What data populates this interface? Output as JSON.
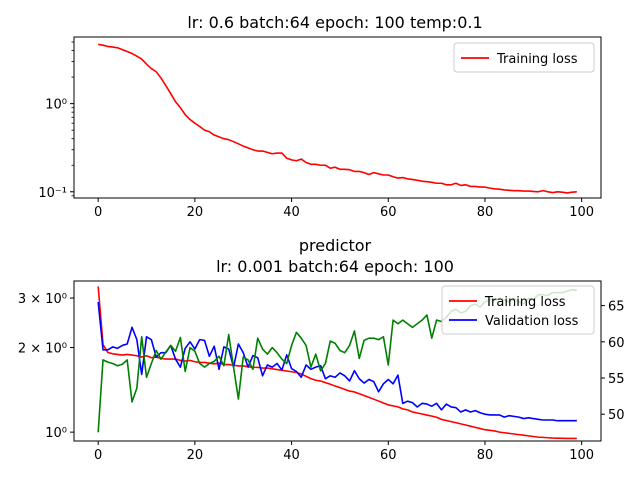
{
  "chart_data": [
    {
      "type": "line",
      "title": "lr: 0.6 batch:64 epoch: 100 temp:0.1",
      "subtitle": "",
      "xlabel": "",
      "ylabel": "",
      "yscale": "log",
      "xlim": [
        -5,
        104
      ],
      "ylim": [
        0.085,
        5.7
      ],
      "x_ticks": [
        0,
        20,
        40,
        60,
        80,
        100
      ],
      "y_ticks": [
        {
          "value": 1.0,
          "label": "10⁰"
        },
        {
          "value": 0.1,
          "label": "10⁻¹"
        }
      ],
      "legend": {
        "placement": "top-right",
        "entries": [
          "Training loss"
        ]
      },
      "grid": false,
      "series": [
        {
          "name": "Training loss",
          "color": "#ff0000",
          "axis": "left",
          "x": [
            0,
            1,
            2,
            3,
            4,
            5,
            6,
            7,
            8,
            9,
            10,
            11,
            12,
            13,
            14,
            15,
            16,
            17,
            18,
            19,
            20,
            21,
            22,
            23,
            24,
            25,
            26,
            27,
            28,
            29,
            30,
            31,
            32,
            33,
            34,
            35,
            36,
            37,
            38,
            39,
            40,
            41,
            42,
            43,
            44,
            45,
            46,
            47,
            48,
            49,
            50,
            51,
            52,
            53,
            54,
            55,
            56,
            57,
            58,
            59,
            60,
            61,
            62,
            63,
            64,
            65,
            66,
            67,
            68,
            69,
            70,
            71,
            72,
            73,
            74,
            75,
            76,
            77,
            78,
            79,
            80,
            81,
            82,
            83,
            84,
            85,
            86,
            87,
            88,
            89,
            90,
            91,
            92,
            93,
            94,
            95,
            96,
            97,
            98,
            99
          ],
          "values": [
            4.7,
            4.6,
            4.45,
            4.38,
            4.3,
            4.1,
            3.9,
            3.7,
            3.45,
            3.2,
            2.8,
            2.5,
            2.3,
            1.95,
            1.6,
            1.3,
            1.05,
            0.9,
            0.75,
            0.66,
            0.6,
            0.55,
            0.5,
            0.48,
            0.44,
            0.42,
            0.4,
            0.39,
            0.37,
            0.35,
            0.33,
            0.315,
            0.3,
            0.29,
            0.29,
            0.28,
            0.27,
            0.275,
            0.275,
            0.24,
            0.23,
            0.225,
            0.235,
            0.215,
            0.205,
            0.205,
            0.2,
            0.2,
            0.185,
            0.19,
            0.18,
            0.18,
            0.178,
            0.17,
            0.17,
            0.165,
            0.157,
            0.165,
            0.16,
            0.155,
            0.155,
            0.148,
            0.143,
            0.145,
            0.14,
            0.138,
            0.135,
            0.132,
            0.13,
            0.128,
            0.125,
            0.125,
            0.12,
            0.12,
            0.125,
            0.118,
            0.12,
            0.115,
            0.115,
            0.113,
            0.113,
            0.11,
            0.108,
            0.107,
            0.105,
            0.104,
            0.103,
            0.103,
            0.102,
            0.102,
            0.101,
            0.1,
            0.103,
            0.1,
            0.098,
            0.1,
            0.099,
            0.097,
            0.099,
            0.1
          ]
        }
      ]
    },
    {
      "type": "line",
      "title": "predictor",
      "subtitle": "lr: 0.001 batch:64 epoch: 100",
      "xlabel": "",
      "ylabel": "",
      "yscale": "log",
      "xlim": [
        -5,
        104
      ],
      "ylim": [
        0.93,
        3.45
      ],
      "y2lim": [
        46.3,
        68.4
      ],
      "x_ticks": [
        0,
        20,
        40,
        60,
        80,
        100
      ],
      "y_ticks": [
        {
          "value": 3.0,
          "label": "3 × 10⁰"
        },
        {
          "value": 2.0,
          "label": "2 × 10⁰"
        },
        {
          "value": 1.0,
          "label": "10⁰"
        }
      ],
      "y2_ticks": [
        50,
        55,
        60,
        65
      ],
      "legend": {
        "placement": "top-right",
        "entries": [
          "Training loss",
          "Validation loss"
        ]
      },
      "grid": false,
      "series": [
        {
          "name": "Training loss",
          "color": "#ff0000",
          "axis": "left",
          "x": [
            0,
            1,
            2,
            3,
            4,
            5,
            6,
            7,
            8,
            9,
            10,
            11,
            12,
            13,
            14,
            15,
            16,
            17,
            18,
            19,
            20,
            21,
            22,
            23,
            24,
            25,
            26,
            27,
            28,
            29,
            30,
            31,
            32,
            33,
            34,
            35,
            36,
            37,
            38,
            39,
            40,
            41,
            42,
            43,
            44,
            45,
            46,
            47,
            48,
            49,
            50,
            51,
            52,
            53,
            54,
            55,
            56,
            57,
            58,
            59,
            60,
            61,
            62,
            63,
            64,
            65,
            66,
            67,
            68,
            69,
            70,
            71,
            72,
            73,
            74,
            75,
            76,
            77,
            78,
            79,
            80,
            81,
            82,
            83,
            84,
            85,
            86,
            87,
            88,
            89,
            90,
            91,
            92,
            93,
            94,
            95,
            96,
            97,
            98,
            99
          ],
          "values": [
            3.3,
            2.05,
            1.92,
            1.9,
            1.89,
            1.88,
            1.89,
            1.88,
            1.87,
            1.85,
            1.87,
            1.84,
            1.85,
            1.83,
            1.82,
            1.82,
            1.82,
            1.8,
            1.79,
            1.8,
            1.78,
            1.77,
            1.77,
            1.76,
            1.75,
            1.76,
            1.74,
            1.74,
            1.73,
            1.72,
            1.72,
            1.71,
            1.7,
            1.7,
            1.69,
            1.69,
            1.68,
            1.67,
            1.66,
            1.65,
            1.64,
            1.63,
            1.61,
            1.58,
            1.55,
            1.53,
            1.52,
            1.5,
            1.48,
            1.46,
            1.44,
            1.42,
            1.4,
            1.39,
            1.37,
            1.35,
            1.33,
            1.31,
            1.29,
            1.27,
            1.25,
            1.24,
            1.23,
            1.21,
            1.2,
            1.18,
            1.17,
            1.16,
            1.15,
            1.14,
            1.13,
            1.11,
            1.1,
            1.09,
            1.08,
            1.07,
            1.06,
            1.05,
            1.04,
            1.03,
            1.02,
            1.015,
            1.01,
            1.0,
            0.995,
            0.99,
            0.985,
            0.98,
            0.975,
            0.97,
            0.965,
            0.96,
            0.958,
            0.955,
            0.953,
            0.952,
            0.951,
            0.95,
            0.95,
            0.95
          ]
        },
        {
          "name": "",
          "color": "#0000ff",
          "axis": "right",
          "x": [
            0,
            1,
            2,
            3,
            4,
            5,
            6,
            7,
            8,
            9,
            10,
            11,
            12,
            13,
            14,
            15,
            16,
            17,
            18,
            19,
            20,
            21,
            22,
            23,
            24,
            25,
            26,
            27,
            28,
            29,
            30,
            31,
            32,
            33,
            34,
            35,
            36,
            37,
            38,
            39,
            40,
            41,
            42,
            43,
            44,
            45,
            46,
            47,
            48,
            49,
            50,
            51,
            52,
            53,
            54,
            55,
            56,
            57,
            58,
            59,
            60,
            61,
            62,
            63,
            64,
            65,
            66,
            67,
            68,
            69,
            70,
            71,
            72,
            73,
            74,
            75,
            76,
            77,
            78,
            79,
            80,
            81,
            82,
            83,
            84,
            85,
            86,
            87,
            88,
            89,
            90,
            91,
            92,
            93,
            94,
            95,
            96,
            97,
            98,
            99
          ],
          "values": [
            65.5,
            58.9,
            58.9,
            59.3,
            59.1,
            59.5,
            59.7,
            62.0,
            60.3,
            55.5,
            60.7,
            60.3,
            57.9,
            58.5,
            58.5,
            59.5,
            57.6,
            56.5,
            59.1,
            60.0,
            59.0,
            60.3,
            60.2,
            58.0,
            59.4,
            56.2,
            59.3,
            59.0,
            56.5,
            59.7,
            58.5,
            56.5,
            58.1,
            57.8,
            55.3,
            56.8,
            56.5,
            57.0,
            56.1,
            58.2,
            56.3,
            55.9,
            55.1,
            56.8,
            56.2,
            56.5,
            56.7,
            54.9,
            55.3,
            55.1,
            55.7,
            55.3,
            54.6,
            56.0,
            54.9,
            54.3,
            54.8,
            54.5,
            53.1,
            54.2,
            54.8,
            54.2,
            55.4,
            51.5,
            51.8,
            51.6,
            51.0,
            51.5,
            51.4,
            51.1,
            51.5,
            50.6,
            51.4,
            51.0,
            50.9,
            50.3,
            50.6,
            50.3,
            50.5,
            50.2,
            50.0,
            49.9,
            49.9,
            49.9,
            49.6,
            49.8,
            49.7,
            49.6,
            49.4,
            49.5,
            49.4,
            49.3,
            49.2,
            49.2,
            49.2,
            49.1,
            49.1,
            49.1,
            49.1,
            49.1
          ]
        },
        {
          "name": "Validation loss",
          "color": "#008000",
          "axis": "right",
          "x": [
            0,
            1,
            2,
            3,
            4,
            5,
            6,
            7,
            8,
            9,
            10,
            11,
            12,
            13,
            14,
            15,
            16,
            17,
            18,
            19,
            20,
            21,
            22,
            23,
            24,
            25,
            26,
            27,
            28,
            29,
            30,
            31,
            32,
            33,
            34,
            35,
            36,
            37,
            38,
            39,
            40,
            41,
            42,
            43,
            44,
            45,
            46,
            47,
            48,
            49,
            50,
            51,
            52,
            53,
            54,
            55,
            56,
            57,
            58,
            59,
            60,
            61,
            62,
            63,
            64,
            65,
            66,
            67,
            68,
            69,
            70,
            71,
            72,
            73,
            74,
            75,
            76,
            77,
            78,
            79,
            80,
            81,
            82,
            83,
            84,
            85,
            86,
            87,
            88,
            89,
            90,
            91,
            92,
            93,
            94,
            95,
            96,
            97,
            98,
            99
          ],
          "values": [
            47.5,
            57.5,
            57.2,
            57.0,
            56.7,
            56.9,
            57.5,
            51.7,
            53.6,
            60.7,
            55.1,
            57.0,
            58.8,
            57.6,
            58.6,
            59.5,
            58.7,
            60.6,
            55.9,
            59.2,
            58.7,
            57.0,
            56.5,
            57.0,
            57.3,
            58.0,
            56.7,
            61.0,
            56.5,
            52.1,
            57.9,
            57.5,
            56.2,
            60.5,
            59.0,
            58.3,
            59.2,
            58.5,
            57.6,
            57.0,
            59.5,
            61.3,
            60.5,
            59.5,
            56.5,
            58.3,
            56.0,
            57.0,
            60.1,
            59.8,
            58.8,
            58.5,
            59.5,
            61.5,
            57.7,
            60.2,
            60.5,
            60.5,
            60.3,
            60.7,
            56.8,
            63.0,
            62.5,
            63.0,
            62.5,
            62.0,
            62.5,
            63.0,
            63.7,
            60.5,
            63.0,
            62.8,
            63.4,
            64.2,
            64.5,
            64.0,
            64.2,
            65.0,
            65.2,
            64.8,
            65.5,
            65.9,
            65.7,
            66.0,
            65.8,
            65.5,
            66.0,
            65.5,
            65.3,
            66.0,
            65.8,
            66.5,
            66.5,
            66.4,
            66.8,
            66.8,
            66.8,
            67.0,
            67.2,
            67.1
          ]
        }
      ]
    }
  ]
}
